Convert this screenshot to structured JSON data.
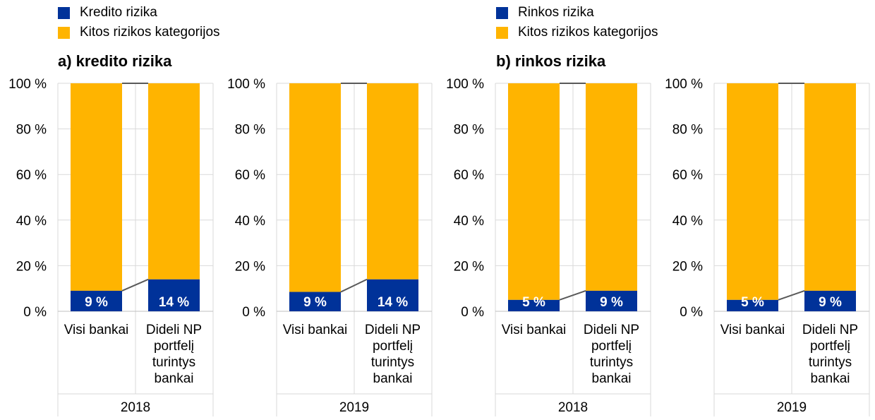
{
  "legend_left": [
    {
      "label": "Kredito rizika",
      "color": "#003299"
    },
    {
      "label": "Kitos rizikos kategorijos",
      "color": "#ffb400"
    }
  ],
  "legend_right": [
    {
      "label": "Rinkos rizika",
      "color": "#003299"
    },
    {
      "label": "Kitos rizikos kategorijos",
      "color": "#ffb400"
    }
  ],
  "sections": [
    {
      "title": "a) kredito rizika"
    },
    {
      "title": "b) rinkos rizika"
    }
  ],
  "chart_data": [
    {
      "type": "bar",
      "stacked": true,
      "group": "2018",
      "categories": [
        "Visi bankai",
        "Dideli NP portfelį turintys bankai"
      ],
      "series": [
        {
          "name": "Kredito rizika",
          "values": [
            9,
            14
          ],
          "labels": [
            "9 %",
            "14 %"
          ],
          "color": "#003299"
        },
        {
          "name": "Kitos rizikos kategorijos",
          "values": [
            91,
            86
          ],
          "color": "#ffb400"
        }
      ],
      "ylim": [
        0,
        100
      ],
      "yticks": [
        "0 %",
        "20 %",
        "40 %",
        "60 %",
        "80 %",
        "100 %"
      ]
    },
    {
      "type": "bar",
      "stacked": true,
      "group": "2019",
      "categories": [
        "Visi bankai",
        "Dideli NP portfelį turintys bankai"
      ],
      "series": [
        {
          "name": "Kredito rizika",
          "values": [
            8.5,
            14
          ],
          "labels": [
            "9 %",
            "14 %"
          ],
          "color": "#003299"
        },
        {
          "name": "Kitos rizikos kategorijos",
          "values": [
            91.5,
            86
          ],
          "color": "#ffb400"
        }
      ],
      "ylim": [
        0,
        100
      ],
      "yticks": [
        "0 %",
        "20 %",
        "40 %",
        "60 %",
        "80 %",
        "100 %"
      ]
    },
    {
      "type": "bar",
      "stacked": true,
      "group": "2018",
      "categories": [
        "Visi bankai",
        "Dideli NP portfelį turintys bankai"
      ],
      "series": [
        {
          "name": "Rinkos rizika",
          "values": [
            5,
            9
          ],
          "labels": [
            "5 %",
            "9 %"
          ],
          "color": "#003299"
        },
        {
          "name": "Kitos rizikos kategorijos",
          "values": [
            95,
            91
          ],
          "color": "#ffb400"
        }
      ],
      "ylim": [
        0,
        100
      ],
      "yticks": [
        "0 %",
        "20 %",
        "40 %",
        "60 %",
        "80 %",
        "100 %"
      ]
    },
    {
      "type": "bar",
      "stacked": true,
      "group": "2019",
      "categories": [
        "Visi bankai",
        "Dideli NP portfelį turintys bankai"
      ],
      "series": [
        {
          "name": "Rinkos rizika",
          "values": [
            5,
            9
          ],
          "labels": [
            "5 %",
            "9 %"
          ],
          "color": "#003299"
        },
        {
          "name": "Kitos rizikos kategorijos",
          "values": [
            95,
            91
          ],
          "color": "#ffb400"
        }
      ],
      "ylim": [
        0,
        100
      ],
      "yticks": [
        "0 %",
        "20 %",
        "40 %",
        "60 %",
        "80 %",
        "100 %"
      ]
    }
  ]
}
